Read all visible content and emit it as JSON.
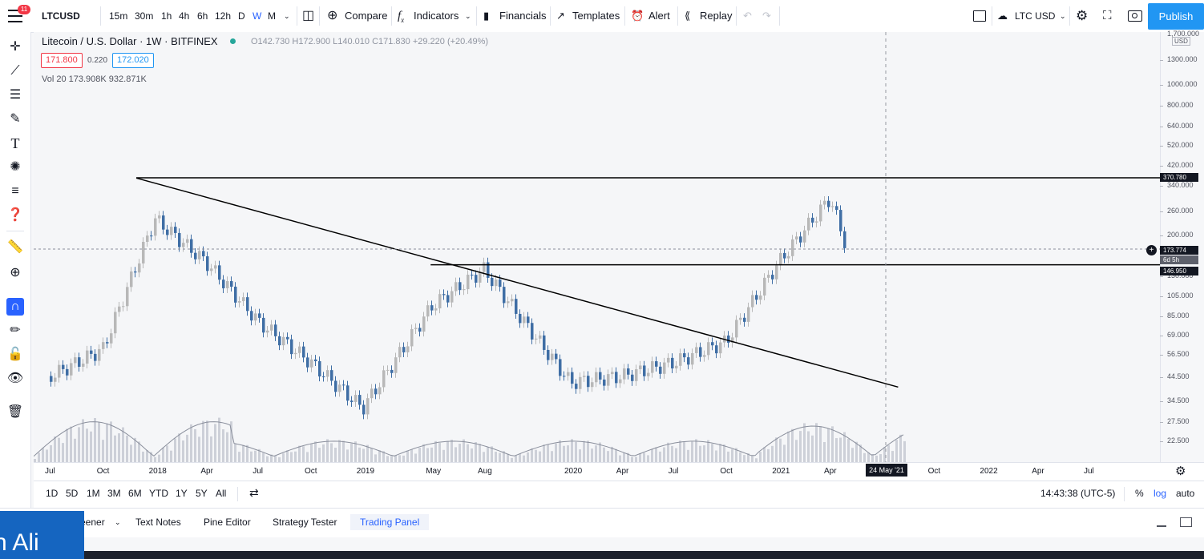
{
  "toolbar": {
    "symbol": "LTCUSD",
    "notification_count": "11",
    "intervals": [
      "15m",
      "30m",
      "1h",
      "4h",
      "6h",
      "12h",
      "D",
      "W",
      "M"
    ],
    "compare_label": "Compare",
    "indicators_label": "Indicators",
    "financials_label": "Financials",
    "templates_label": "Templates",
    "alert_label": "Alert",
    "replay_label": "Replay",
    "currency_label": "LTC USD",
    "publish_label": "Publish"
  },
  "legend": {
    "title": "Litecoin / U.S. Dollar · 1W · BITFINEX",
    "ohlc": "O142.730 H172.900 L140.010 C171.830 +29.220 (+20.49%)",
    "bid": "171.800",
    "spread": "0.220",
    "ask": "172.020",
    "volume": "Vol 20  173.908K  932.871K"
  },
  "yaxis": {
    "top_label": "1,700.000",
    "unit": "USD",
    "ticks": [
      "1300.000",
      "1000.000",
      "800.000",
      "640.000",
      "520.000",
      "420.000",
      "340.000",
      "260.000",
      "200.000",
      "130.000",
      "105.000",
      "85.000",
      "69.000",
      "56.500",
      "44.500",
      "34.500",
      "27.500",
      "22.500"
    ],
    "price_labels": [
      "370.780",
      "173.774",
      "6d 5h",
      "146.950"
    ]
  },
  "xaxis": {
    "ticks": [
      "Jul",
      "Oct",
      "2018",
      "Apr",
      "Jul",
      "Oct",
      "2019",
      "May",
      "Aug",
      "2020",
      "Apr",
      "Jul",
      "Oct",
      "2021",
      "Apr",
      "Jul",
      "Oct",
      "2022",
      "Apr",
      "Jul"
    ],
    "crosshair_label": "24 May '21"
  },
  "ranges": {
    "buttons": [
      "1D",
      "5D",
      "1M",
      "3M",
      "6M",
      "YTD",
      "1Y",
      "5Y",
      "All"
    ],
    "clock": "14:43:38 (UTC-5)",
    "percent": "%",
    "log": "log",
    "auto": "auto"
  },
  "bottom_tabs": {
    "tabs": [
      "eener",
      "Text Notes",
      "Pine Editor",
      "Strategy Tester",
      "Trading Panel"
    ]
  },
  "overlay": {
    "text": "n Ali"
  },
  "chart_data": {
    "type": "candlestick",
    "symbol": "LTCUSD",
    "interval": "1W",
    "scale": "log",
    "ylim": [
      18,
      1750
    ],
    "x": [
      "2017-07",
      "2017-10",
      "2018-01",
      "2018-04",
      "2018-07",
      "2018-10",
      "2019-01",
      "2019-05",
      "2019-08",
      "2020-01",
      "2020-04",
      "2020-07",
      "2020-10",
      "2021-01",
      "2021-04",
      "2021-05"
    ],
    "close": [
      45,
      60,
      240,
      150,
      80,
      52,
      32,
      95,
      140,
      42,
      45,
      52,
      65,
      150,
      300,
      172
    ],
    "horizontal_levels": [
      370.78,
      146.95
    ],
    "trendline": [
      {
        "x": "2017-12",
        "y": 370
      },
      {
        "x": "2021-08",
        "y": 40
      }
    ],
    "current_price": 173.774
  },
  "colors": {
    "accent": "#2962ff",
    "publish": "#2196f3",
    "candle_up": "#b8b8b8",
    "candle_down": "#3f6ea5",
    "notification": "#f23645"
  }
}
